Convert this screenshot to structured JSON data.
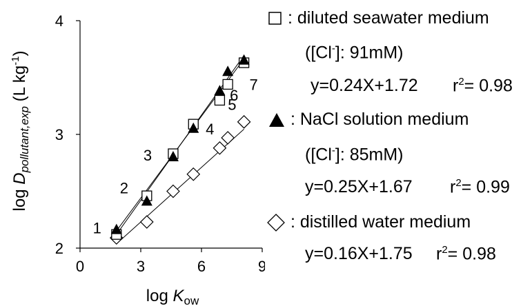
{
  "chart_data": {
    "type": "scatter",
    "xlabel_prefix": "log ",
    "xlabel_var": "K",
    "xlabel_sub": "ow",
    "ylabel_prefix": "log ",
    "ylabel_var": "D",
    "ylabel_sub": "pollutant,exp",
    "ylabel_unit": " (L kg",
    "ylabel_unit_sup": "-1",
    "ylabel_unit_end": ")",
    "xlim": [
      0,
      9
    ],
    "ylim": [
      2,
      4
    ],
    "xticks": [
      "0",
      "3",
      "6",
      "9"
    ],
    "yticks": [
      "2",
      "3",
      "4"
    ],
    "grid": false,
    "point_labels": [
      {
        "text": "1",
        "x": 1.8,
        "y": 2.13
      },
      {
        "text": "2",
        "x": 3.2,
        "y": 2.42
      },
      {
        "text": "3",
        "x": 4.5,
        "y": 2.8
      },
      {
        "text": "4",
        "x": 5.6,
        "y": 3.05
      },
      {
        "text": "5",
        "x": 6.9,
        "y": 3.3
      },
      {
        "text": "6",
        "x": 7.2,
        "y": 3.43
      },
      {
        "text": "7",
        "x": 8.1,
        "y": 3.62
      }
    ],
    "series": [
      {
        "name": "diluted seawater medium",
        "marker": "open-square",
        "x": [
          1.8,
          3.3,
          4.6,
          5.6,
          6.9,
          7.3,
          8.1
        ],
        "y": [
          2.12,
          2.46,
          2.83,
          3.09,
          3.3,
          3.44,
          3.63
        ],
        "fit": {
          "slope": 0.24,
          "intercept": 1.72
        }
      },
      {
        "name": "NaCl solution medium",
        "marker": "filled-triangle",
        "x": [
          1.8,
          3.3,
          4.6,
          5.6,
          6.9,
          7.3,
          8.1
        ],
        "y": [
          2.16,
          2.41,
          2.8,
          3.05,
          3.38,
          3.55,
          3.65
        ],
        "fit": {
          "slope": 0.25,
          "intercept": 1.67
        }
      },
      {
        "name": "distilled water medium",
        "marker": "open-diamond",
        "x": [
          1.8,
          3.3,
          4.6,
          5.6,
          6.9,
          7.3,
          8.1
        ],
        "y": [
          2.09,
          2.23,
          2.5,
          2.65,
          2.88,
          2.97,
          3.11
        ],
        "fit": {
          "slope": 0.16,
          "intercept": 1.75
        }
      }
    ]
  },
  "legend": {
    "seawater": {
      "name": ": diluted seawater medium",
      "cl_prefix": "([Cl",
      "cl_sup": "-",
      "cl_suffix": "]: 91mM)",
      "eq": "y=0.24X+1.72",
      "r2_prefix": "r",
      "r2_sup": "2",
      "r2_suffix": "= 0.98"
    },
    "nacl": {
      "name": ": NaCl solution medium",
      "cl_prefix": "([Cl",
      "cl_sup": "-",
      "cl_suffix": "]: 85mM)",
      "eq": "y=0.25X+1.67",
      "r2_prefix": "r",
      "r2_sup": "2",
      "r2_suffix": "= 0.99"
    },
    "distilled": {
      "name": ":  distilled water medium",
      "eq": "y=0.16X+1.75",
      "r2_prefix": "r",
      "r2_sup": "2",
      "r2_suffix": "= 0.98"
    }
  }
}
